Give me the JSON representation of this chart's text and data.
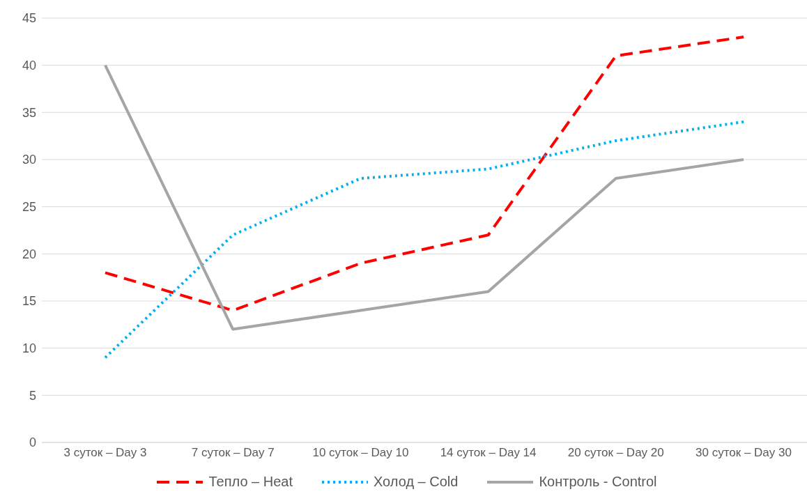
{
  "chart_data": {
    "type": "line",
    "categories": [
      "3 суток – Day 3",
      "7 суток – Day 7",
      "10 суток – Day 10",
      "14 суток – Day 14",
      "20 суток – Day 20",
      "30 суток – Day 30"
    ],
    "series": [
      {
        "name": "Тепло – Heat",
        "color": "#ff0000",
        "line_style": "dashed",
        "values": [
          18,
          14,
          19,
          22,
          41,
          43
        ]
      },
      {
        "name": "Холод – Cold",
        "color": "#00b0f0",
        "line_style": "dotted",
        "values": [
          9,
          22,
          28,
          29,
          32,
          34
        ]
      },
      {
        "name": "Контроль - Control",
        "color": "#a5a5a5",
        "line_style": "solid",
        "values": [
          40,
          12,
          14,
          16,
          28,
          30
        ]
      }
    ],
    "ylim": [
      0,
      45
    ],
    "yticks": [
      0,
      5,
      10,
      15,
      20,
      25,
      30,
      35,
      40,
      45
    ],
    "grid": "y",
    "legend": "bottom",
    "marker": "none"
  }
}
